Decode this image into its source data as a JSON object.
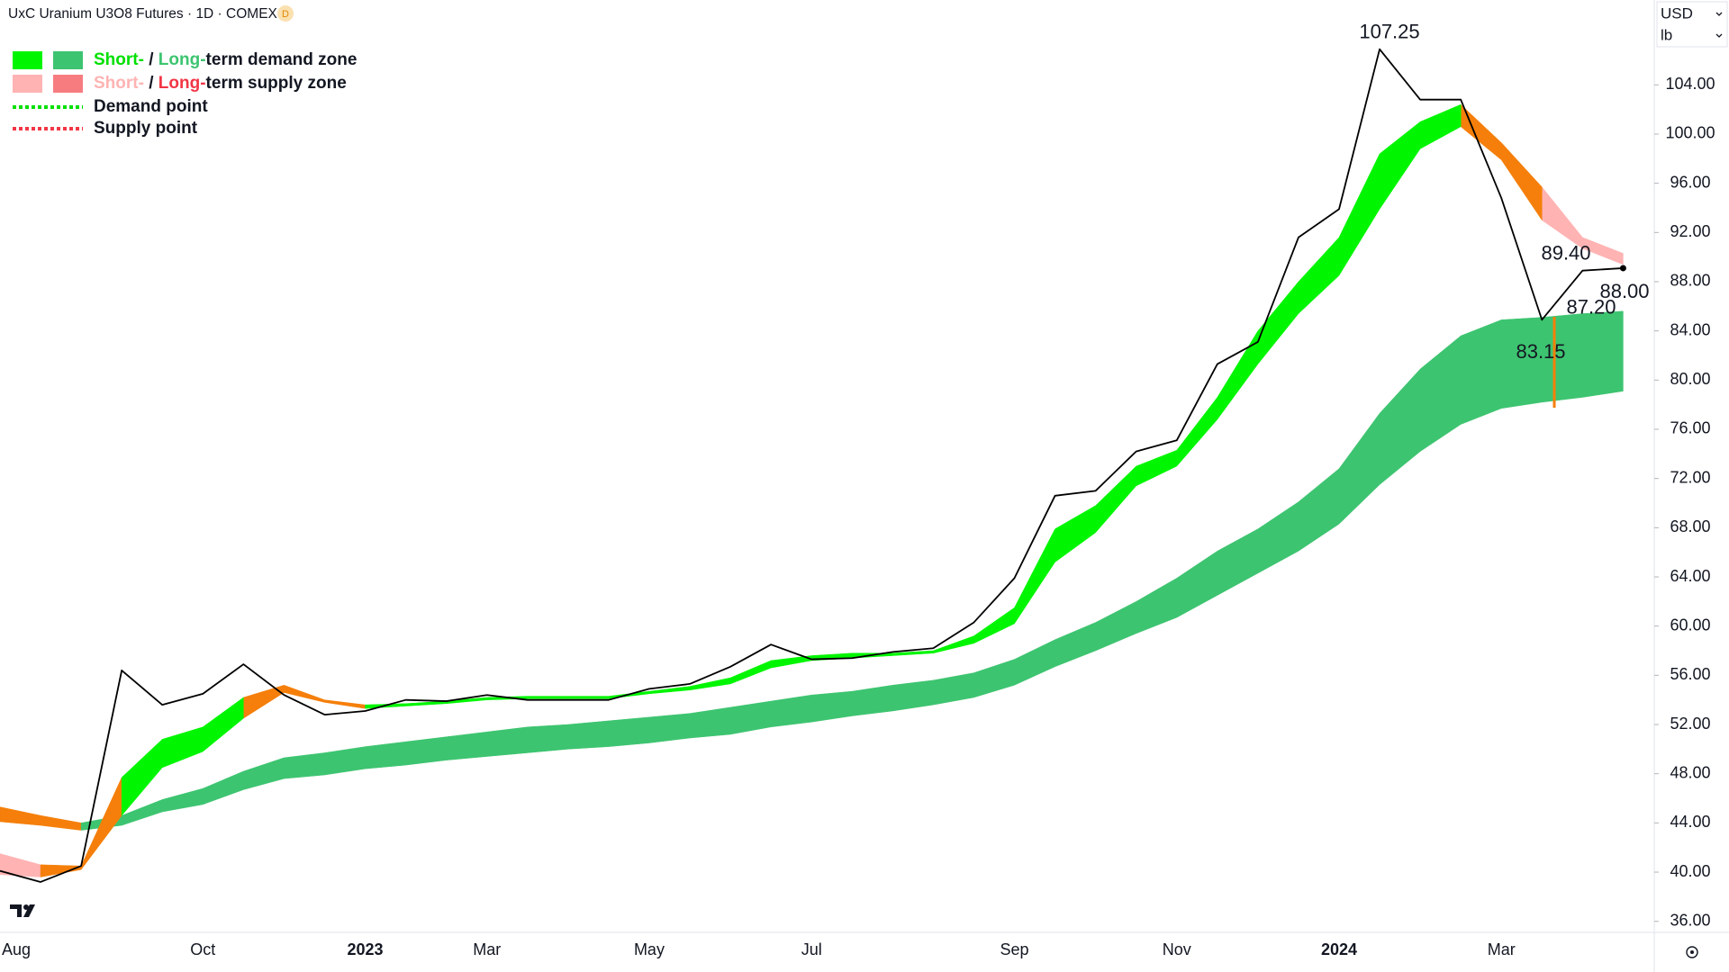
{
  "chart_data": {
    "type": "line",
    "title": "UxC Uranium U3O8 Futures · 1D · COMEX",
    "badge": "D",
    "currency": "USD",
    "unit": "lb",
    "categories": [
      "Aug",
      null,
      null,
      null,
      null,
      "Oct",
      null,
      null,
      null,
      "2023",
      null,
      null,
      "Mar",
      null,
      null,
      null,
      "May",
      null,
      null,
      null,
      "Jul",
      null,
      null,
      null,
      null,
      "Sep",
      null,
      null,
      null,
      "Nov",
      null,
      null,
      null,
      "2024",
      null,
      null,
      null,
      "Mar",
      null,
      null,
      null
    ],
    "price": {
      "color": "#000000",
      "values": [
        40.1,
        39.2,
        40.5,
        56.4,
        53.6,
        54.5,
        56.9,
        54.4,
        52.8,
        53.1,
        54.0,
        53.9,
        54.4,
        54.0,
        54.0,
        54.0,
        54.9,
        55.3,
        56.7,
        58.5,
        57.3,
        57.4,
        57.9,
        58.2,
        60.3,
        63.9,
        70.6,
        71.0,
        74.2,
        75.1,
        81.3,
        83.1,
        91.6,
        93.9,
        106.9,
        102.8,
        102.8,
        94.8,
        84.9,
        88.9,
        89.1
      ]
    },
    "zones": [
      {
        "color": "#f57f0a",
        "upper": [
          45.3,
          44.6,
          44.0,
          null,
          null,
          null,
          null,
          null,
          null,
          null,
          null,
          null,
          null,
          null,
          null,
          null,
          null,
          null,
          null,
          null,
          null,
          null,
          null,
          null,
          null,
          null,
          null,
          null,
          null,
          null,
          null,
          null,
          null,
          null,
          null,
          null,
          null,
          null,
          null,
          null,
          null
        ],
        "lower": [
          44.1,
          43.8,
          43.4,
          null,
          null,
          null,
          null,
          null,
          null,
          null,
          null,
          null,
          null,
          null,
          null,
          null,
          null,
          null,
          null,
          null,
          null,
          null,
          null,
          null,
          null,
          null,
          null,
          null,
          null,
          null,
          null,
          null,
          null,
          null,
          null,
          null,
          null,
          null,
          null,
          null,
          null
        ]
      },
      {
        "color": "#3dc470",
        "upper": [
          null,
          null,
          44.0,
          44.6,
          45.9,
          46.8,
          48.2,
          49.3,
          49.7,
          50.2,
          50.6,
          51.0,
          51.4,
          51.8,
          52.0,
          52.3,
          52.6,
          52.9,
          53.4,
          53.9,
          54.4,
          54.7,
          55.2,
          55.6,
          56.2,
          57.3,
          58.9,
          60.3,
          62.0,
          63.9,
          66.1,
          67.9,
          70.1,
          72.8,
          77.3,
          80.9,
          83.6,
          84.9,
          85.1,
          85.4,
          85.6
        ],
        "lower": [
          null,
          null,
          43.4,
          43.8,
          44.9,
          45.5,
          46.7,
          47.6,
          47.9,
          48.4,
          48.7,
          49.1,
          49.4,
          49.7,
          50.0,
          50.2,
          50.5,
          50.9,
          51.2,
          51.8,
          52.2,
          52.7,
          53.1,
          53.6,
          54.2,
          55.2,
          56.7,
          58.0,
          59.4,
          60.7,
          62.5,
          64.3,
          66.1,
          68.3,
          71.5,
          74.2,
          76.4,
          77.7,
          78.2,
          78.6,
          79.1
        ]
      },
      {
        "color": "#ffb3b3",
        "upper": [
          41.5,
          40.6,
          null,
          null,
          null,
          null,
          null,
          null,
          null,
          null,
          null,
          null,
          null,
          null,
          null,
          null,
          null,
          null,
          null,
          null,
          null,
          null,
          null,
          null,
          null,
          null,
          null,
          null,
          null,
          null,
          null,
          null,
          null,
          null,
          null,
          null,
          null,
          null,
          95.7,
          91.6,
          90.3
        ],
        "lower": [
          39.8,
          39.6,
          null,
          null,
          null,
          null,
          null,
          null,
          null,
          null,
          null,
          null,
          null,
          null,
          null,
          null,
          null,
          null,
          null,
          null,
          null,
          null,
          null,
          null,
          null,
          null,
          null,
          null,
          null,
          null,
          null,
          null,
          null,
          null,
          null,
          null,
          null,
          null,
          93.0,
          90.7,
          89.4
        ]
      },
      {
        "color": "#f57f0a",
        "upper": [
          null,
          40.6,
          40.5,
          47.7,
          null,
          null,
          54.2,
          55.2,
          54.0,
          53.6,
          null,
          null,
          null,
          null,
          null,
          null,
          null,
          null,
          null,
          null,
          null,
          null,
          null,
          null,
          null,
          null,
          null,
          null,
          null,
          null,
          null,
          null,
          null,
          null,
          null,
          null,
          102.4,
          99.3,
          95.7,
          null,
          null
        ],
        "lower": [
          null,
          39.6,
          40.2,
          44.6,
          null,
          null,
          52.5,
          54.6,
          53.8,
          53.3,
          null,
          null,
          null,
          null,
          null,
          null,
          null,
          null,
          null,
          null,
          null,
          null,
          null,
          null,
          null,
          null,
          null,
          null,
          null,
          null,
          null,
          null,
          null,
          null,
          null,
          null,
          100.6,
          97.9,
          93.0,
          null,
          null
        ]
      },
      {
        "color": "#00f500",
        "upper": [
          null,
          null,
          null,
          47.7,
          50.8,
          51.8,
          54.2,
          null,
          null,
          53.6,
          53.7,
          53.9,
          54.2,
          54.3,
          54.3,
          54.3,
          54.7,
          55.1,
          55.8,
          57.2,
          57.6,
          57.8,
          57.8,
          58.0,
          59.2,
          61.5,
          67.9,
          69.8,
          73.0,
          74.3,
          78.6,
          84.0,
          88.0,
          91.6,
          98.4,
          101.0,
          102.4,
          null,
          null,
          null,
          null
        ],
        "lower": [
          null,
          null,
          null,
          44.6,
          48.5,
          49.8,
          52.5,
          null,
          null,
          53.3,
          53.5,
          53.7,
          54.0,
          54.1,
          54.1,
          54.1,
          54.5,
          54.8,
          55.3,
          56.6,
          57.2,
          57.4,
          57.6,
          57.8,
          58.6,
          60.2,
          65.2,
          67.6,
          71.4,
          73.0,
          76.8,
          81.3,
          85.4,
          88.5,
          93.9,
          98.8,
          100.6,
          null,
          null,
          null,
          null
        ]
      }
    ],
    "annotations": [
      {
        "value": 107.25,
        "label": "107.25"
      },
      {
        "value": 89.4,
        "label": "89.40"
      },
      {
        "value": 88.0,
        "label": "88.00"
      },
      {
        "value": 87.2,
        "label": "87.20"
      },
      {
        "value": 83.15,
        "label": "83.15"
      }
    ],
    "legend": [
      {
        "swatches": [
          "#00f500",
          "#3dc470"
        ],
        "runs": [
          {
            "text": "Short-",
            "color": "#00e000"
          },
          {
            "text": " / ",
            "color": "#131722"
          },
          {
            "text": "Long-",
            "color": "#3dc470"
          },
          {
            "text": "term demand zone",
            "color": "#131722"
          }
        ]
      },
      {
        "swatches": [
          "#ffb3b3",
          "#f77c80"
        ],
        "runs": [
          {
            "text": "Short-",
            "color": "#ffb3b3"
          },
          {
            "text": " / ",
            "color": "#131722"
          },
          {
            "text": "Long-",
            "color": "#f23645"
          },
          {
            "text": "term supply zone",
            "color": "#131722"
          }
        ]
      },
      {
        "dash": "#00e000",
        "runs": [
          {
            "text": "Demand point",
            "color": "#131722"
          }
        ]
      },
      {
        "dash": "#f23645",
        "runs": [
          {
            "text": "Supply point",
            "color": "#131722"
          }
        ]
      }
    ],
    "ylim": [
      35.1,
      110.9
    ],
    "yticks": [
      {
        "value": 36,
        "label": "36.00"
      },
      {
        "value": 40,
        "label": "40.00"
      },
      {
        "value": 44,
        "label": "44.00"
      },
      {
        "value": 48,
        "label": "48.00"
      },
      {
        "value": 52,
        "label": "52.00"
      },
      {
        "value": 56,
        "label": "56.00"
      },
      {
        "value": 60,
        "label": "60.00"
      },
      {
        "value": 64,
        "label": "64.00"
      },
      {
        "value": 68,
        "label": "68.00"
      },
      {
        "value": 72,
        "label": "72.00"
      },
      {
        "value": 76,
        "label": "76.00"
      },
      {
        "value": 80,
        "label": "80.00"
      },
      {
        "value": 84,
        "label": "84.00"
      },
      {
        "value": 88,
        "label": "88.00"
      },
      {
        "value": 92,
        "label": "92.00"
      },
      {
        "value": 96,
        "label": "96.00"
      },
      {
        "value": 100,
        "label": "100.00"
      },
      {
        "value": 104,
        "label": "104.00"
      }
    ],
    "grid": false
  }
}
